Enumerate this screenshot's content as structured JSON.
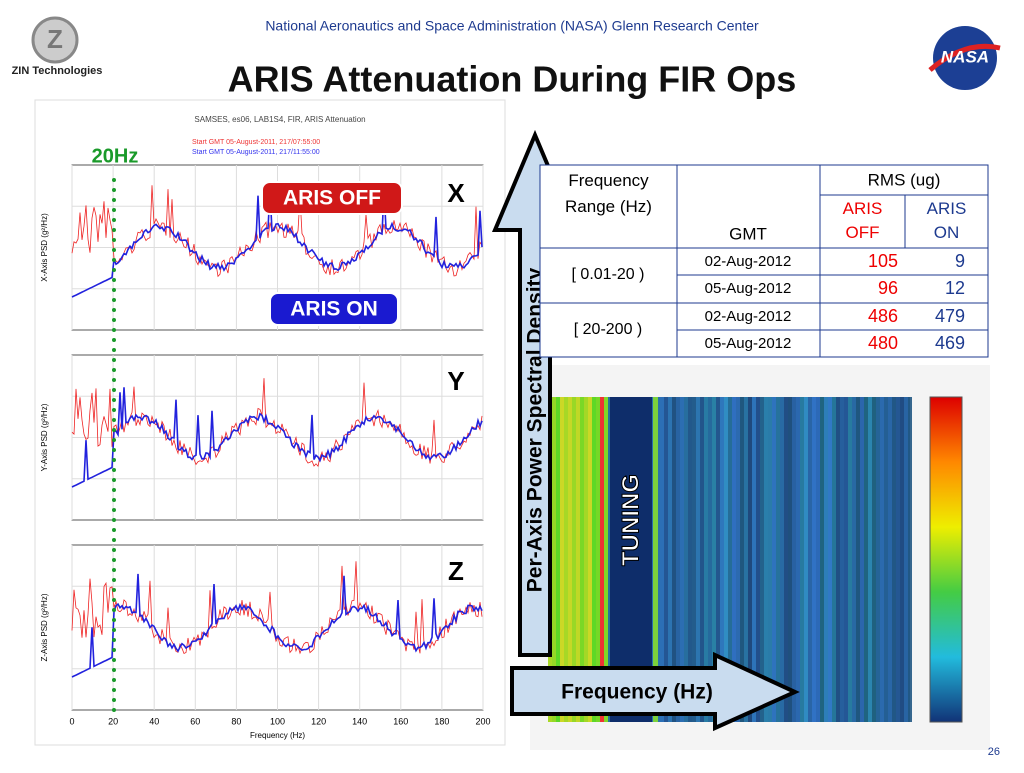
{
  "header": {
    "org": "National Aeronautics and Space Administration (NASA) Glenn Research Center",
    "title": "ARIS Attenuation During FIR Ops",
    "company": "ZIN Technologies",
    "nasa_logo": "NASA"
  },
  "annotations": {
    "marker": "20Hz",
    "aris_off": "ARIS OFF",
    "aris_on": "ARIS ON",
    "axes": [
      "X",
      "Y",
      "Z"
    ],
    "vertical_arrow": "Per-Axis Power Spectral Density",
    "horizontal_arrow": "Frequency (Hz)",
    "tuning": "TUNING"
  },
  "psd_plots": {
    "plot_title": "SAMSES, es06, LAB1S4, FIR, ARIS Attenuation",
    "legend": [
      "Start GMT 05-August-2011, 217/07:55:00",
      "Start GMT 05-August-2011, 217/11:55:00"
    ],
    "x_label": "Frequency (Hz)",
    "x_ticks": [
      "0",
      "20",
      "40",
      "60",
      "80",
      "100",
      "120",
      "140",
      "160",
      "180",
      "200"
    ],
    "y_labels": [
      "X-Axis PSD (g²/Hz)",
      "Y-Axis PSD (g²/Hz)",
      "Z-Axis PSD (g²/Hz)"
    ]
  },
  "table": {
    "col_headers": [
      "Frequency Range (Hz)",
      "GMT",
      "RMS (ug)"
    ],
    "sub_headers": [
      "ARIS OFF",
      "ARIS ON"
    ],
    "rows": [
      [
        "[ 0.01-20 )",
        "02-Aug-2012",
        105,
        9
      ],
      [
        "",
        "05-Aug-2012",
        96,
        12
      ],
      [
        "[ 20-200 )",
        "02-Aug-2012",
        486,
        479
      ],
      [
        "",
        "05-Aug-2012",
        480,
        469
      ]
    ]
  },
  "slide_number": "26"
}
